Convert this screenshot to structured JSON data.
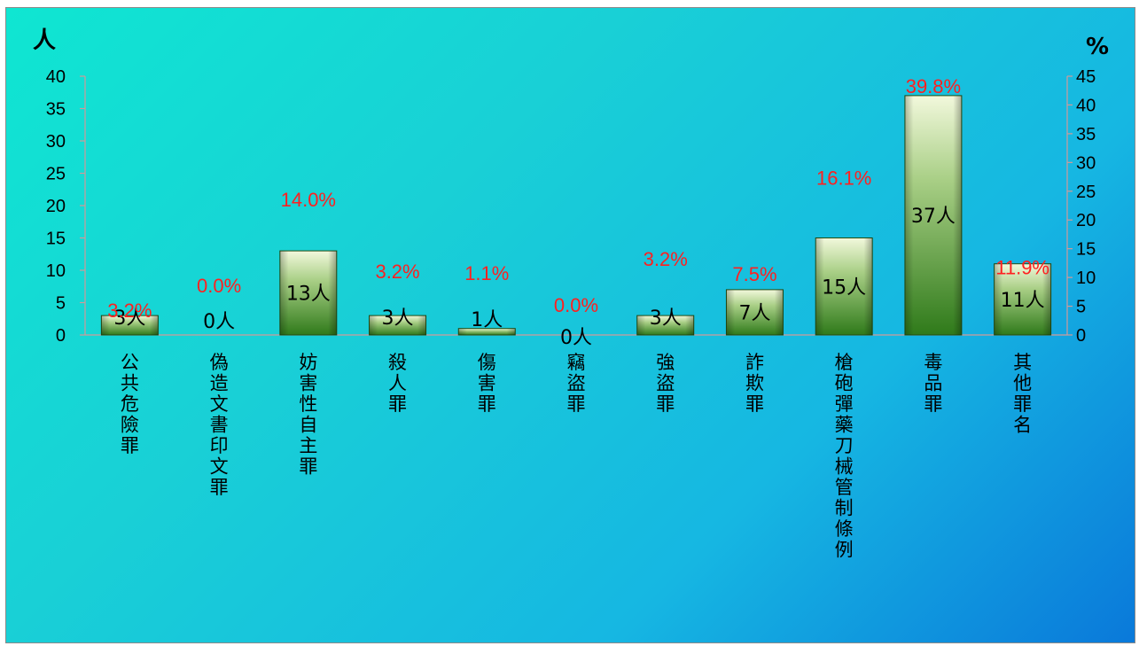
{
  "chart_data": {
    "type": "bar",
    "left_unit": "人",
    "right_unit": "%",
    "categories": [
      "公共危險罪",
      "偽造文書印文罪",
      "妨害性自主罪",
      "殺人罪",
      "傷害罪",
      "竊盜罪",
      "強盜罪",
      "詐欺罪",
      "槍砲彈藥刀械管制條例",
      "毒品罪",
      "其他罪名"
    ],
    "series": [
      {
        "values": [
          3,
          0,
          13,
          3,
          1,
          0,
          3,
          7,
          15,
          37,
          11
        ]
      },
      {
        "values": [
          3.2,
          0.0,
          14.0,
          3.2,
          1.1,
          0.0,
          3.2,
          7.5,
          16.1,
          39.8,
          11.9
        ]
      }
    ],
    "count_labels": [
      "3人",
      "0人",
      "13人",
      "3人",
      "1人",
      "0人",
      "3人",
      "7人",
      "15人",
      "37人",
      "11人"
    ],
    "percent_labels": [
      "3.2%",
      "0.0%",
      "14.0%",
      "3.2%",
      "1.1%",
      "0.0%",
      "3.2%",
      "7.5%",
      "16.1%",
      "39.8%",
      "11.9%"
    ],
    "left_ticks": [
      "0",
      "5",
      "10",
      "15",
      "20",
      "25",
      "30",
      "35",
      "40"
    ],
    "right_ticks": [
      "0",
      "5",
      "10",
      "15",
      "20",
      "25",
      "30",
      "35",
      "40",
      "45"
    ],
    "ylim": [
      0,
      40
    ],
    "y2lim": [
      0,
      45
    ],
    "grid": false,
    "colors": {
      "bar_top": "#f2f8dc",
      "bar_bottom": "#2f7a1a",
      "percent_text": "#ff2020",
      "axis": "#d09a9a"
    }
  }
}
